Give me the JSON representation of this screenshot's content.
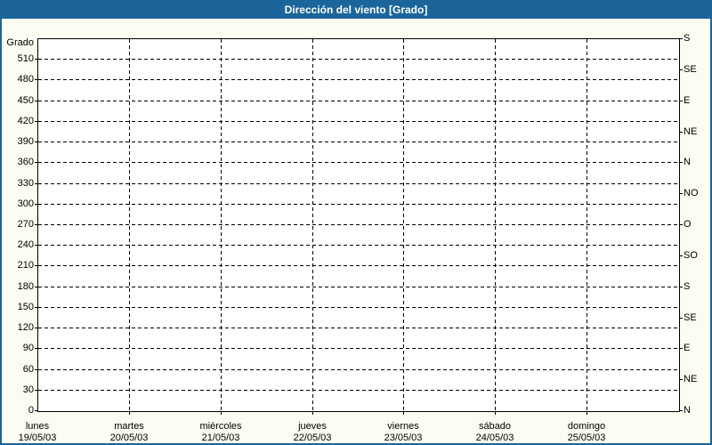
{
  "window": {
    "title": "Dirección del viento [Grado]"
  },
  "colors": {
    "title_bar": "#1B659B",
    "page_border": "#1B659B",
    "page_background": "#FCFCF2",
    "plot_background": "#FFFFFF",
    "grid": "#000000",
    "text": "#000000",
    "title_text": "#FFFFFF"
  },
  "chart_data": {
    "type": "line",
    "title": "Dirección del viento [Grado]",
    "grid": true,
    "y_axis_left": {
      "unit_label": "Grado",
      "min": 0,
      "max": 540,
      "tick_step": 30,
      "tick_labels": [
        "0",
        "30",
        "60",
        "90",
        "120",
        "150",
        "180",
        "210",
        "240",
        "270",
        "300",
        "330",
        "360",
        "390",
        "420",
        "450",
        "480",
        "510"
      ]
    },
    "y_axis_right": {
      "tick_step": 45,
      "tick_values": [
        0,
        45,
        90,
        135,
        180,
        225,
        270,
        315,
        360,
        405,
        450,
        495,
        540
      ],
      "tick_labels": [
        "N",
        "NE",
        "E",
        "SE",
        "S",
        "SO",
        "O",
        "NO",
        "N",
        "NE",
        "E",
        "SE",
        "S"
      ]
    },
    "x_axis": {
      "categories": [
        {
          "day": "lunes",
          "date": "19/05/03"
        },
        {
          "day": "martes",
          "date": "20/05/03"
        },
        {
          "day": "miércoles",
          "date": "21/05/03"
        },
        {
          "day": "jueves",
          "date": "22/05/03"
        },
        {
          "day": "viernes",
          "date": "23/05/03"
        },
        {
          "day": "sábado",
          "date": "24/05/03"
        },
        {
          "day": "domingo",
          "date": "25/05/03"
        }
      ]
    },
    "series": []
  }
}
